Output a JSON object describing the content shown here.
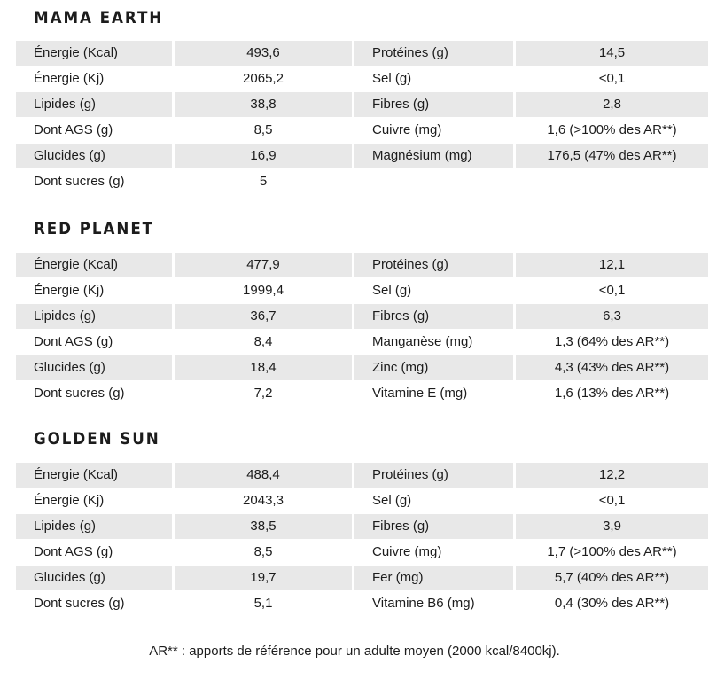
{
  "sections": [
    {
      "title": "MAMA EARTH",
      "left": [
        {
          "label": "Énergie (Kcal)",
          "value": "493,6"
        },
        {
          "label": "Énergie (Kj)",
          "value": "2065,2"
        },
        {
          "label": "Lipides (g)",
          "value": "38,8"
        },
        {
          "label": "Dont AGS (g)",
          "value": "8,5"
        },
        {
          "label": "Glucides (g)",
          "value": "16,9"
        },
        {
          "label": "Dont sucres (g)",
          "value": "5"
        }
      ],
      "right": [
        {
          "label": "Protéines (g)",
          "value": "14,5"
        },
        {
          "label": "Sel (g)",
          "value": "<0,1"
        },
        {
          "label": "Fibres (g)",
          "value": "2,8"
        },
        {
          "label": "Cuivre (mg)",
          "value": "1,6 (>100% des AR**)"
        },
        {
          "label": "Magnésium (mg)",
          "value": "176,5 (47%  des AR**)"
        }
      ]
    },
    {
      "title": "RED PLANET",
      "left": [
        {
          "label": "Énergie (Kcal)",
          "value": "477,9"
        },
        {
          "label": "Énergie (Kj)",
          "value": "1999,4"
        },
        {
          "label": "Lipides (g)",
          "value": "36,7"
        },
        {
          "label": "Dont AGS (g)",
          "value": "8,4"
        },
        {
          "label": "Glucides (g)",
          "value": "18,4"
        },
        {
          "label": "Dont sucres (g)",
          "value": "7,2"
        }
      ],
      "right": [
        {
          "label": "Protéines (g)",
          "value": "12,1"
        },
        {
          "label": "Sel (g)",
          "value": "<0,1"
        },
        {
          "label": "Fibres (g)",
          "value": "6,3"
        },
        {
          "label": "Manganèse (mg)",
          "value": "1,3 (64% des AR**)"
        },
        {
          "label": "Zinc (mg)",
          "value": "4,3 (43%  des AR**)"
        },
        {
          "label": "Vitamine E (mg)",
          "value": "1,6 (13%  des AR**)"
        }
      ]
    },
    {
      "title": "GOLDEN SUN",
      "left": [
        {
          "label": "Énergie (Kcal)",
          "value": "488,4"
        },
        {
          "label": "Énergie (Kj)",
          "value": "2043,3"
        },
        {
          "label": "Lipides (g)",
          "value": "38,5"
        },
        {
          "label": "Dont AGS (g)",
          "value": "8,5"
        },
        {
          "label": "Glucides (g)",
          "value": "19,7"
        },
        {
          "label": "Dont sucres (g)",
          "value": "5,1"
        }
      ],
      "right": [
        {
          "label": "Protéines (g)",
          "value": "12,2"
        },
        {
          "label": "Sel (g)",
          "value": "<0,1"
        },
        {
          "label": "Fibres (g)",
          "value": "3,9"
        },
        {
          "label": "Cuivre (mg)",
          "value": "1,7 (>100% des AR**)"
        },
        {
          "label": "Fer (mg)",
          "value": "5,7 (40%  des AR**)"
        },
        {
          "label": "Vitamine B6 (mg)",
          "value": "0,4 (30%  des AR**)"
        }
      ]
    }
  ],
  "footnote": "AR** : apports de référence pour un adulte moyen (2000 kcal/8400kj)."
}
